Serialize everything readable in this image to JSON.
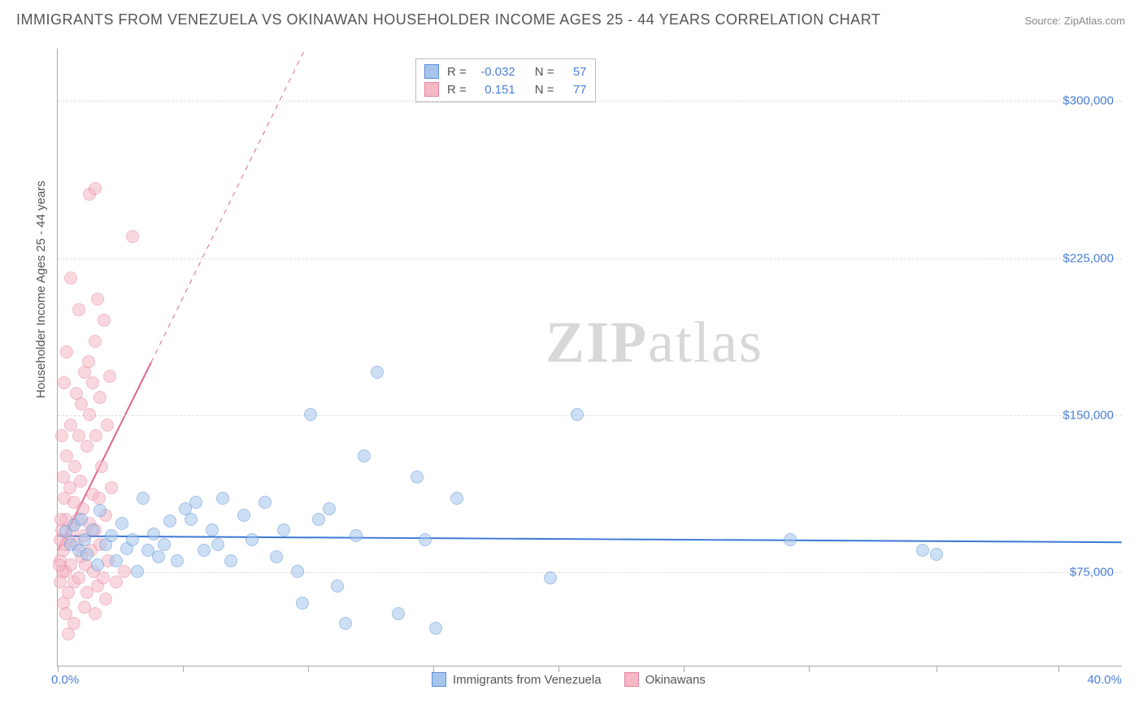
{
  "title": "IMMIGRANTS FROM VENEZUELA VS OKINAWAN HOUSEHOLDER INCOME AGES 25 - 44 YEARS CORRELATION CHART",
  "source": "Source: ZipAtlas.com",
  "watermark_a": "ZIP",
  "watermark_b": "atlas",
  "chart": {
    "type": "scatter",
    "xlabel_min": "0.0%",
    "xlabel_max": "40.0%",
    "xlim": [
      0,
      40
    ],
    "ylabel": "Householder Income Ages 25 - 44 years",
    "ylim": [
      30000,
      325000
    ],
    "yticks": [
      75000,
      150000,
      225000,
      300000
    ],
    "ytick_labels": [
      "$75,000",
      "$150,000",
      "$225,000",
      "$300,000"
    ],
    "xticks": [
      0,
      4.7,
      9.4,
      14.1,
      18.8,
      23.5,
      28.2,
      33,
      37.6
    ],
    "grid_color": "#dddddd",
    "axis_color": "#aaaaaa",
    "background_color": "#ffffff",
    "tick_label_color": "#4a7fd8",
    "axis_title_color": "#555555",
    "point_radius": 8,
    "point_opacity": 0.55,
    "series": [
      {
        "name": "Immigrants from Venezuela",
        "fill_color": "#a5c5ec",
        "stroke_color": "#5b8fd6",
        "R": "-0.032",
        "N": "57",
        "trend": {
          "x1": 0,
          "y1": 92000,
          "x2": 40,
          "y2": 89000,
          "color": "#3b78d6",
          "width": 2,
          "dashed_extension": false
        },
        "points": [
          [
            0.3,
            94000
          ],
          [
            0.5,
            88000
          ],
          [
            0.6,
            97000
          ],
          [
            0.8,
            85000
          ],
          [
            0.9,
            100000
          ],
          [
            1.0,
            90000
          ],
          [
            1.1,
            83000
          ],
          [
            1.3,
            95000
          ],
          [
            1.5,
            78000
          ],
          [
            1.6,
            104000
          ],
          [
            1.8,
            88000
          ],
          [
            2.0,
            92000
          ],
          [
            2.2,
            80000
          ],
          [
            2.4,
            98000
          ],
          [
            2.6,
            86000
          ],
          [
            2.8,
            90000
          ],
          [
            3.0,
            75000
          ],
          [
            3.2,
            110000
          ],
          [
            3.4,
            85000
          ],
          [
            3.6,
            93000
          ],
          [
            3.8,
            82000
          ],
          [
            4.0,
            88000
          ],
          [
            4.2,
            99000
          ],
          [
            4.5,
            80000
          ],
          [
            4.8,
            105000
          ],
          [
            5.2,
            108000
          ],
          [
            5.5,
            85000
          ],
          [
            5.8,
            95000
          ],
          [
            6.2,
            110000
          ],
          [
            6.5,
            80000
          ],
          [
            7.0,
            102000
          ],
          [
            7.3,
            90000
          ],
          [
            7.8,
            108000
          ],
          [
            8.2,
            82000
          ],
          [
            8.5,
            95000
          ],
          [
            9.0,
            75000
          ],
          [
            9.2,
            60000
          ],
          [
            9.5,
            150000
          ],
          [
            9.8,
            100000
          ],
          [
            10.2,
            105000
          ],
          [
            10.5,
            68000
          ],
          [
            10.8,
            50000
          ],
          [
            11.2,
            92000
          ],
          [
            11.5,
            130000
          ],
          [
            12.0,
            170000
          ],
          [
            12.8,
            55000
          ],
          [
            13.5,
            120000
          ],
          [
            13.8,
            90000
          ],
          [
            14.2,
            48000
          ],
          [
            15.0,
            110000
          ],
          [
            18.5,
            72000
          ],
          [
            19.5,
            150000
          ],
          [
            27.5,
            90000
          ],
          [
            32.5,
            85000
          ],
          [
            33.0,
            83000
          ],
          [
            5.0,
            100000
          ],
          [
            6.0,
            88000
          ]
        ]
      },
      {
        "name": "Okinawans",
        "fill_color": "#f5b8c5",
        "stroke_color": "#e583a0",
        "R": "0.151",
        "N": "77",
        "trend": {
          "x1": 0,
          "y1": 85000,
          "x2": 3.5,
          "y2": 175000,
          "ext_x2": 12,
          "ext_y2": 395000,
          "color": "#e0668c",
          "width": 2,
          "dashed_extension": true
        },
        "points": [
          [
            0.1,
            70000
          ],
          [
            0.1,
            80000
          ],
          [
            0.15,
            95000
          ],
          [
            0.2,
            60000
          ],
          [
            0.2,
            85000
          ],
          [
            0.25,
            110000
          ],
          [
            0.3,
            75000
          ],
          [
            0.3,
            100000
          ],
          [
            0.35,
            130000
          ],
          [
            0.4,
            90000
          ],
          [
            0.4,
            65000
          ],
          [
            0.45,
            115000
          ],
          [
            0.5,
            78000
          ],
          [
            0.5,
            145000
          ],
          [
            0.55,
            95000
          ],
          [
            0.6,
            108000
          ],
          [
            0.6,
            70000
          ],
          [
            0.65,
            125000
          ],
          [
            0.7,
            88000
          ],
          [
            0.7,
            160000
          ],
          [
            0.75,
            100000
          ],
          [
            0.8,
            72000
          ],
          [
            0.8,
            140000
          ],
          [
            0.85,
            118000
          ],
          [
            0.9,
            82000
          ],
          [
            0.9,
            155000
          ],
          [
            0.95,
            105000
          ],
          [
            1.0,
            92000
          ],
          [
            1.0,
            170000
          ],
          [
            1.05,
            78000
          ],
          [
            1.1,
            135000
          ],
          [
            1.1,
            65000
          ],
          [
            1.15,
            175000
          ],
          [
            1.2,
            98000
          ],
          [
            1.2,
            150000
          ],
          [
            1.25,
            85000
          ],
          [
            1.3,
            165000
          ],
          [
            1.3,
            112000
          ],
          [
            1.35,
            75000
          ],
          [
            1.4,
            185000
          ],
          [
            1.4,
            95000
          ],
          [
            1.45,
            140000
          ],
          [
            1.5,
            68000
          ],
          [
            1.5,
            205000
          ],
          [
            1.55,
            110000
          ],
          [
            1.6,
            88000
          ],
          [
            1.6,
            158000
          ],
          [
            1.65,
            125000
          ],
          [
            1.7,
            72000
          ],
          [
            1.75,
            195000
          ],
          [
            1.8,
            102000
          ],
          [
            1.85,
            145000
          ],
          [
            1.9,
            80000
          ],
          [
            1.95,
            168000
          ],
          [
            2.0,
            115000
          ],
          [
            0.5,
            215000
          ],
          [
            0.8,
            200000
          ],
          [
            1.2,
            255000
          ],
          [
            1.4,
            258000
          ],
          [
            2.8,
            235000
          ],
          [
            0.3,
            55000
          ],
          [
            0.6,
            50000
          ],
          [
            1.0,
            58000
          ],
          [
            1.4,
            55000
          ],
          [
            1.8,
            62000
          ],
          [
            2.2,
            70000
          ],
          [
            2.5,
            75000
          ],
          [
            0.4,
            45000
          ],
          [
            0.2,
            120000
          ],
          [
            0.15,
            140000
          ],
          [
            0.25,
            165000
          ],
          [
            0.35,
            180000
          ],
          [
            0.12,
            100000
          ],
          [
            0.18,
            75000
          ],
          [
            0.28,
            88000
          ],
          [
            0.08,
            90000
          ],
          [
            0.05,
            78000
          ]
        ]
      }
    ],
    "legend_top": {
      "R_label": "R =",
      "N_label": "N ="
    },
    "legend_bottom": {
      "items": [
        "Immigrants from Venezuela",
        "Okinawans"
      ]
    }
  }
}
